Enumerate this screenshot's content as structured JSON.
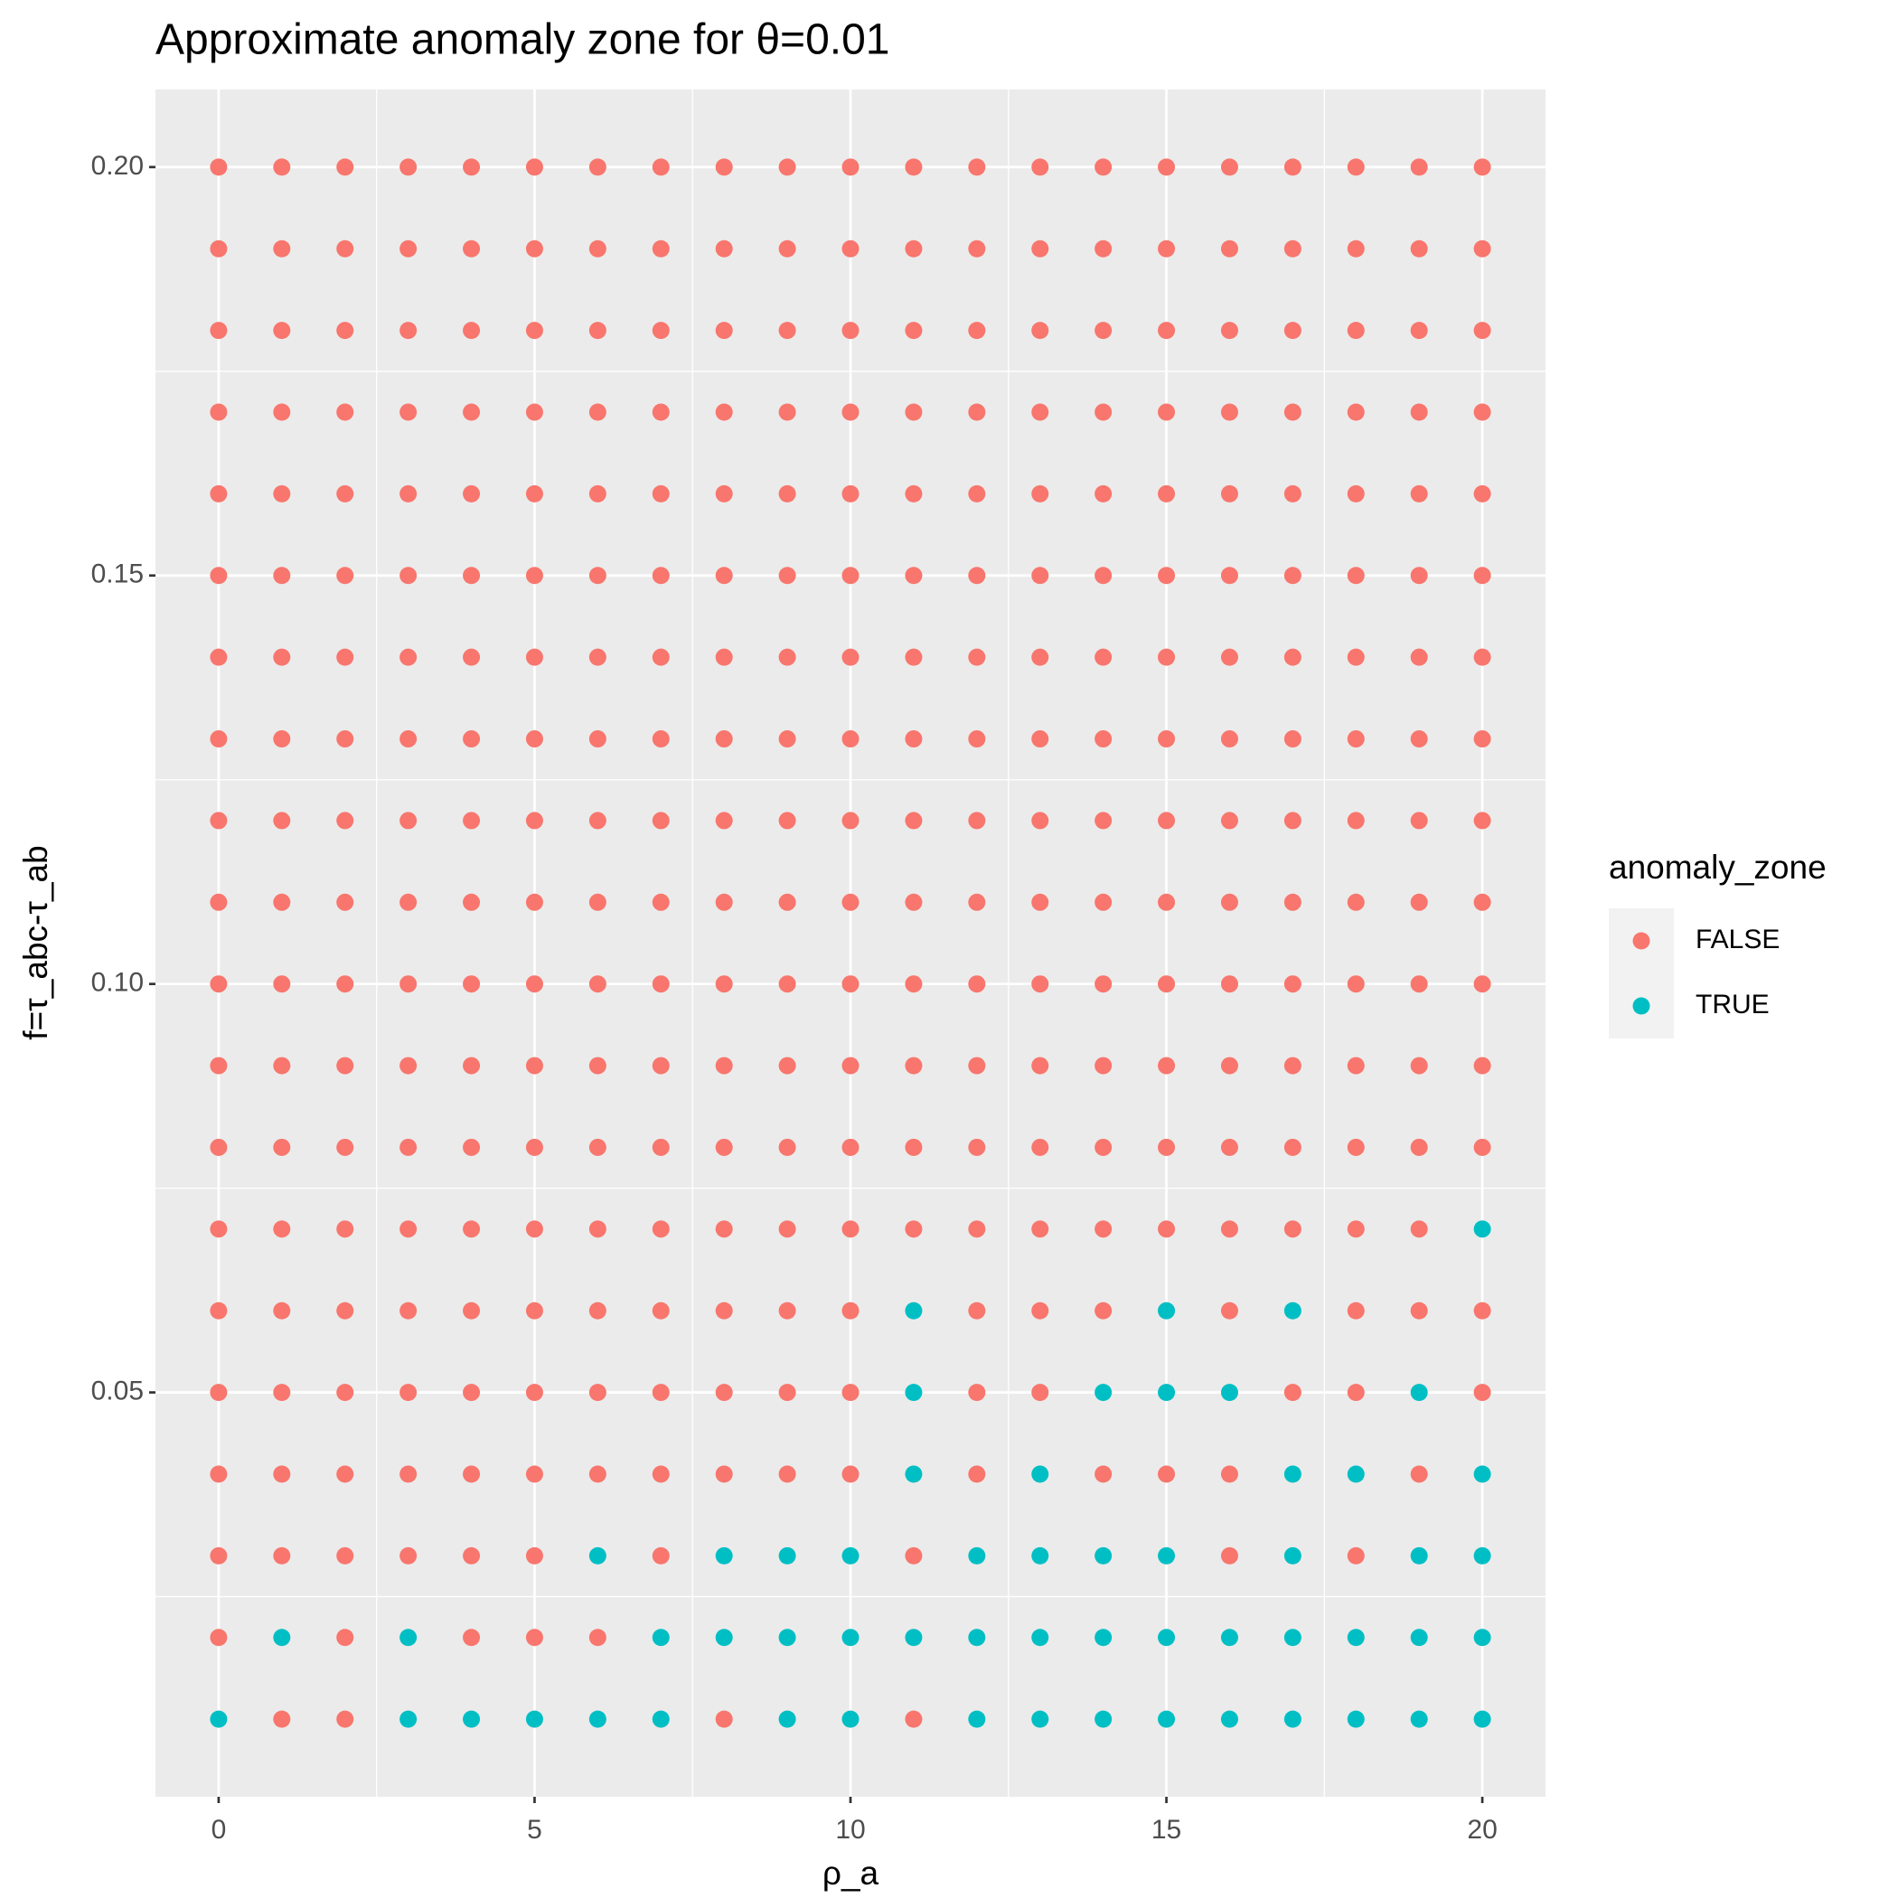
{
  "chart_data": {
    "type": "scatter",
    "title": "Approximate anomaly zone for θ=0.01",
    "xlabel": "ρ_a",
    "ylabel": "f=τ_abc-τ_ab",
    "legend_title": "anomaly_zone",
    "legend_position": "right",
    "grid": true,
    "xlim": [
      -1,
      21
    ],
    "ylim": [
      0.0005,
      0.2095
    ],
    "xticks": [
      0,
      5,
      10,
      15,
      20
    ],
    "yticks": [
      0.05,
      {
        "value": 0.1,
        "label": "0.10"
      },
      0.15,
      {
        "value": 0.2,
        "label": "0.20"
      }
    ],
    "series": [
      {
        "name": "FALSE",
        "color": "#F8766D",
        "x": [
          0,
          1,
          2,
          3,
          4,
          5,
          6,
          7,
          8,
          9,
          10,
          11,
          12,
          13,
          14,
          15,
          16,
          17,
          18,
          19,
          20,
          0,
          1,
          2,
          3,
          4,
          5,
          6,
          7,
          8,
          9,
          10,
          11,
          12,
          13,
          14,
          15,
          16,
          17,
          18,
          19,
          20,
          0,
          1,
          2,
          3,
          4,
          5,
          6,
          7,
          8,
          9,
          10,
          11,
          12,
          13,
          14,
          15,
          16,
          17,
          18,
          19,
          20,
          0,
          1,
          2,
          3,
          4,
          5,
          6,
          7,
          8,
          9,
          10,
          11,
          12,
          13,
          14,
          15,
          16,
          17,
          18,
          19,
          20,
          0,
          1,
          2,
          3,
          4,
          5,
          6,
          7,
          8,
          9,
          10,
          11,
          12,
          13,
          14,
          15,
          16,
          17,
          18,
          19,
          20,
          0,
          1,
          2,
          3,
          4,
          5,
          6,
          7,
          8,
          9,
          10,
          11,
          12,
          13,
          14,
          15,
          16,
          17,
          18,
          19,
          20,
          0,
          1,
          2,
          3,
          4,
          5,
          6,
          7,
          8,
          9,
          10,
          11,
          12,
          13,
          14,
          15,
          16,
          17,
          18,
          19,
          20,
          0,
          1,
          2,
          3,
          4,
          5,
          6,
          7,
          8,
          9,
          10,
          11,
          12,
          13,
          14,
          15,
          16,
          17,
          18,
          19,
          20,
          0,
          1,
          2,
          3,
          4,
          5,
          6,
          7,
          8,
          9,
          10,
          11,
          12,
          13,
          14,
          15,
          16,
          17,
          18,
          19,
          20,
          0,
          1,
          2,
          3,
          4,
          5,
          6,
          7,
          8,
          9,
          10,
          11,
          12,
          13,
          14,
          15,
          16,
          17,
          18,
          19,
          20,
          0,
          1,
          2,
          3,
          4,
          5,
          6,
          7,
          8,
          9,
          10,
          11,
          12,
          13,
          14,
          15,
          16,
          17,
          18,
          19,
          20,
          0,
          1,
          2,
          3,
          4,
          5,
          6,
          7,
          8,
          9,
          10,
          11,
          12,
          13,
          14,
          15,
          16,
          17,
          18,
          19,
          20,
          0,
          1,
          2,
          3,
          4,
          5,
          6,
          7,
          8,
          9,
          10,
          11,
          12,
          13,
          14,
          15,
          16,
          17,
          18,
          19,
          20,
          0,
          1,
          2,
          3,
          4,
          5,
          6,
          7,
          8,
          9,
          10,
          11,
          12,
          13,
          14,
          15,
          16,
          17,
          18,
          19,
          0,
          1,
          2,
          3,
          4,
          5,
          6,
          7,
          8,
          9,
          10,
          12,
          13,
          14,
          16,
          18,
          19,
          20,
          0,
          1,
          2,
          3,
          4,
          5,
          6,
          7,
          8,
          9,
          10,
          12,
          13,
          17,
          18,
          20,
          0,
          1,
          2,
          3,
          4,
          5,
          6,
          7,
          8,
          9,
          10,
          12,
          14,
          15,
          16,
          19,
          0,
          1,
          2,
          3,
          4,
          5,
          7,
          11,
          16,
          18,
          0,
          2,
          4,
          5,
          6,
          1,
          2,
          8,
          11
        ],
        "y": [
          0.2,
          0.2,
          0.2,
          0.2,
          0.2,
          0.2,
          0.2,
          0.2,
          0.2,
          0.2,
          0.2,
          0.2,
          0.2,
          0.2,
          0.2,
          0.2,
          0.2,
          0.2,
          0.2,
          0.2,
          0.2,
          0.19,
          0.19,
          0.19,
          0.19,
          0.19,
          0.19,
          0.19,
          0.19,
          0.19,
          0.19,
          0.19,
          0.19,
          0.19,
          0.19,
          0.19,
          0.19,
          0.19,
          0.19,
          0.19,
          0.19,
          0.19,
          0.18,
          0.18,
          0.18,
          0.18,
          0.18,
          0.18,
          0.18,
          0.18,
          0.18,
          0.18,
          0.18,
          0.18,
          0.18,
          0.18,
          0.18,
          0.18,
          0.18,
          0.18,
          0.18,
          0.18,
          0.18,
          0.17,
          0.17,
          0.17,
          0.17,
          0.17,
          0.17,
          0.17,
          0.17,
          0.17,
          0.17,
          0.17,
          0.17,
          0.17,
          0.17,
          0.17,
          0.17,
          0.17,
          0.17,
          0.17,
          0.17,
          0.17,
          0.16,
          0.16,
          0.16,
          0.16,
          0.16,
          0.16,
          0.16,
          0.16,
          0.16,
          0.16,
          0.16,
          0.16,
          0.16,
          0.16,
          0.16,
          0.16,
          0.16,
          0.16,
          0.16,
          0.16,
          0.16,
          0.15,
          0.15,
          0.15,
          0.15,
          0.15,
          0.15,
          0.15,
          0.15,
          0.15,
          0.15,
          0.15,
          0.15,
          0.15,
          0.15,
          0.15,
          0.15,
          0.15,
          0.15,
          0.15,
          0.15,
          0.15,
          0.14,
          0.14,
          0.14,
          0.14,
          0.14,
          0.14,
          0.14,
          0.14,
          0.14,
          0.14,
          0.14,
          0.14,
          0.14,
          0.14,
          0.14,
          0.14,
          0.14,
          0.14,
          0.14,
          0.14,
          0.14,
          0.13,
          0.13,
          0.13,
          0.13,
          0.13,
          0.13,
          0.13,
          0.13,
          0.13,
          0.13,
          0.13,
          0.13,
          0.13,
          0.13,
          0.13,
          0.13,
          0.13,
          0.13,
          0.13,
          0.13,
          0.13,
          0.12,
          0.12,
          0.12,
          0.12,
          0.12,
          0.12,
          0.12,
          0.12,
          0.12,
          0.12,
          0.12,
          0.12,
          0.12,
          0.12,
          0.12,
          0.12,
          0.12,
          0.12,
          0.12,
          0.12,
          0.12,
          0.11,
          0.11,
          0.11,
          0.11,
          0.11,
          0.11,
          0.11,
          0.11,
          0.11,
          0.11,
          0.11,
          0.11,
          0.11,
          0.11,
          0.11,
          0.11,
          0.11,
          0.11,
          0.11,
          0.11,
          0.11,
          0.1,
          0.1,
          0.1,
          0.1,
          0.1,
          0.1,
          0.1,
          0.1,
          0.1,
          0.1,
          0.1,
          0.1,
          0.1,
          0.1,
          0.1,
          0.1,
          0.1,
          0.1,
          0.1,
          0.1,
          0.1,
          0.09,
          0.09,
          0.09,
          0.09,
          0.09,
          0.09,
          0.09,
          0.09,
          0.09,
          0.09,
          0.09,
          0.09,
          0.09,
          0.09,
          0.09,
          0.09,
          0.09,
          0.09,
          0.09,
          0.09,
          0.09,
          0.08,
          0.08,
          0.08,
          0.08,
          0.08,
          0.08,
          0.08,
          0.08,
          0.08,
          0.08,
          0.08,
          0.08,
          0.08,
          0.08,
          0.08,
          0.08,
          0.08,
          0.08,
          0.08,
          0.08,
          0.08,
          0.07,
          0.07,
          0.07,
          0.07,
          0.07,
          0.07,
          0.07,
          0.07,
          0.07,
          0.07,
          0.07,
          0.07,
          0.07,
          0.07,
          0.07,
          0.07,
          0.07,
          0.07,
          0.07,
          0.07,
          0.06,
          0.06,
          0.06,
          0.06,
          0.06,
          0.06,
          0.06,
          0.06,
          0.06,
          0.06,
          0.06,
          0.06,
          0.06,
          0.06,
          0.06,
          0.06,
          0.06,
          0.06,
          0.05,
          0.05,
          0.05,
          0.05,
          0.05,
          0.05,
          0.05,
          0.05,
          0.05,
          0.05,
          0.05,
          0.05,
          0.05,
          0.05,
          0.05,
          0.05,
          0.04,
          0.04,
          0.04,
          0.04,
          0.04,
          0.04,
          0.04,
          0.04,
          0.04,
          0.04,
          0.04,
          0.04,
          0.04,
          0.04,
          0.04,
          0.04,
          0.03,
          0.03,
          0.03,
          0.03,
          0.03,
          0.03,
          0.03,
          0.03,
          0.03,
          0.03,
          0.02,
          0.02,
          0.02,
          0.02,
          0.02,
          0.01,
          0.01,
          0.01,
          0.01
        ]
      },
      {
        "name": "TRUE",
        "color": "#00BFC4",
        "x": [
          20,
          11,
          15,
          17,
          11,
          14,
          15,
          16,
          19,
          11,
          13,
          17,
          18,
          20,
          6,
          8,
          9,
          10,
          12,
          13,
          14,
          15,
          17,
          19,
          20,
          1,
          3,
          7,
          8,
          9,
          10,
          11,
          12,
          13,
          14,
          15,
          16,
          17,
          18,
          19,
          20,
          0,
          3,
          4,
          5,
          6,
          7,
          9,
          10,
          12,
          13,
          14,
          15,
          16,
          17,
          18,
          19,
          20
        ],
        "y": [
          0.07,
          0.06,
          0.06,
          0.06,
          0.05,
          0.05,
          0.05,
          0.05,
          0.05,
          0.04,
          0.04,
          0.04,
          0.04,
          0.04,
          0.03,
          0.03,
          0.03,
          0.03,
          0.03,
          0.03,
          0.03,
          0.03,
          0.03,
          0.03,
          0.03,
          0.02,
          0.02,
          0.02,
          0.02,
          0.02,
          0.02,
          0.02,
          0.02,
          0.02,
          0.02,
          0.02,
          0.02,
          0.02,
          0.02,
          0.02,
          0.02,
          0.01,
          0.01,
          0.01,
          0.01,
          0.01,
          0.01,
          0.01,
          0.01,
          0.01,
          0.01,
          0.01,
          0.01,
          0.01,
          0.01,
          0.01,
          0.01,
          0.01
        ]
      }
    ]
  }
}
